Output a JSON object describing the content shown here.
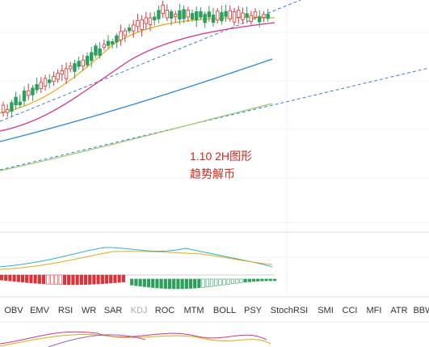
{
  "annotation": {
    "lines": [
      "1.10 2H图形",
      "趋势解币"
    ]
  },
  "indicator_tabs": [
    {
      "label": "OBV",
      "muted": false
    },
    {
      "label": "EMV",
      "muted": false
    },
    {
      "label": "RSI",
      "muted": false
    },
    {
      "label": "WR",
      "muted": false
    },
    {
      "label": "SAR",
      "muted": false
    },
    {
      "label": "KDJ",
      "muted": true
    },
    {
      "label": "ROC",
      "muted": false
    },
    {
      "label": "MTM",
      "muted": false
    },
    {
      "label": "BOLL",
      "muted": false
    },
    {
      "label": "PSY",
      "muted": false
    },
    {
      "label": "StochRSI",
      "muted": false
    },
    {
      "label": "SMI",
      "muted": false
    },
    {
      "label": "CCI",
      "muted": false
    },
    {
      "label": "MFI",
      "muted": false
    },
    {
      "label": "ATR",
      "muted": false
    },
    {
      "label": "BBW",
      "muted": false
    }
  ]
}
